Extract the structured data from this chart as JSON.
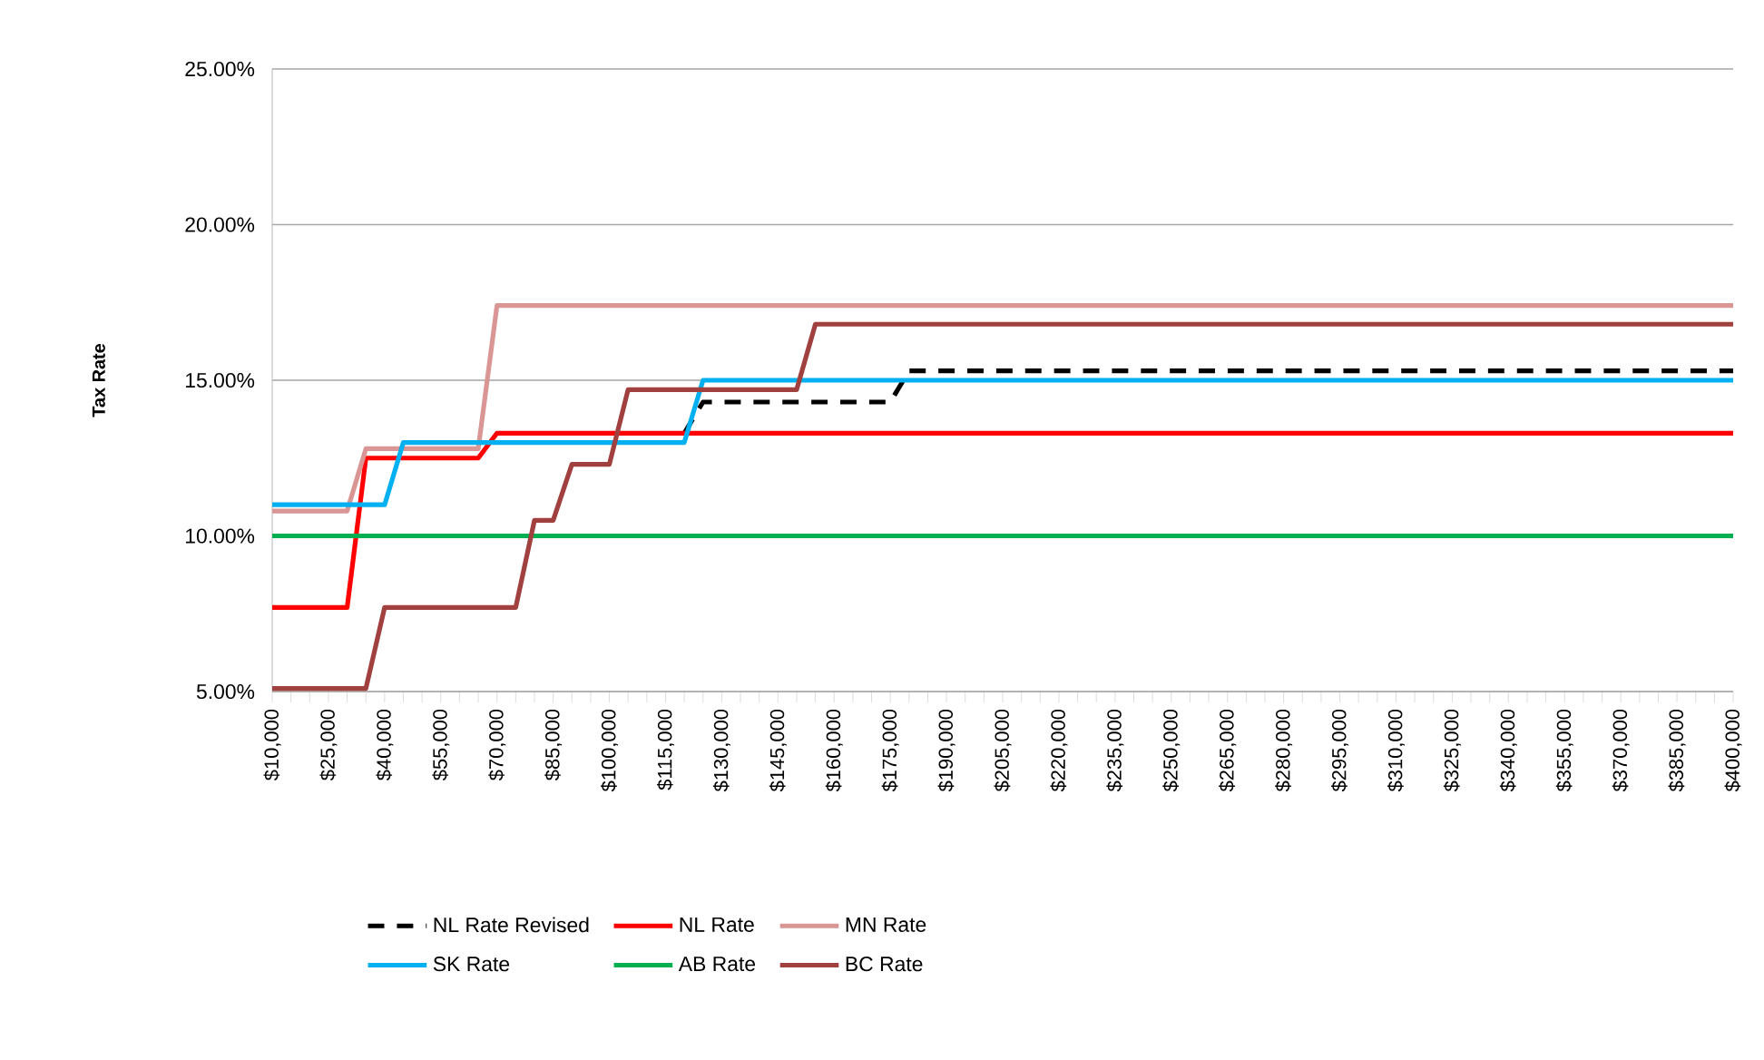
{
  "chart_data": {
    "type": "line",
    "ylabel": "Tax Rate",
    "ylim": [
      5,
      25
    ],
    "yticks": [
      {
        "value": 5,
        "label": "5.00%"
      },
      {
        "value": 10,
        "label": "10.00%"
      },
      {
        "value": 15,
        "label": "15.00%"
      },
      {
        "value": 20,
        "label": "20.00%"
      },
      {
        "value": 25,
        "label": "25.00%"
      }
    ],
    "grid": "y",
    "legend": "bottom",
    "line_style": "solid",
    "categories": [
      "$10,000",
      null,
      null,
      "$25,000",
      null,
      null,
      "$40,000",
      null,
      null,
      "$55,000",
      null,
      null,
      "$70,000",
      null,
      null,
      "$85,000",
      null,
      null,
      "$100,000",
      null,
      null,
      "$115,000",
      null,
      null,
      "$130,000",
      null,
      null,
      "$145,000",
      null,
      null,
      "$160,000",
      null,
      null,
      "$175,000",
      null,
      null,
      "$190,000",
      null,
      null,
      "$205,000",
      null,
      null,
      "$220,000",
      null,
      null,
      "$235,000",
      null,
      null,
      "$250,000",
      null,
      null,
      "$265,000",
      null,
      null,
      "$280,000",
      null,
      null,
      "$295,000",
      null,
      null,
      "$310,000",
      null,
      null,
      "$325,000",
      null,
      null,
      "$340,000",
      null,
      null,
      "$355,000",
      null,
      null,
      "$370,000",
      null,
      null,
      "$385,000",
      null,
      null,
      "$400,000"
    ],
    "series": [
      {
        "name": "NL Rate Revised",
        "color": "#000000",
        "line_style": "dashed",
        "values": [
          null,
          null,
          null,
          null,
          null,
          null,
          null,
          null,
          null,
          null,
          null,
          null,
          null,
          null,
          null,
          null,
          null,
          null,
          null,
          null,
          null,
          null,
          13.3,
          14.3,
          14.3,
          14.3,
          14.3,
          14.3,
          14.3,
          14.3,
          14.3,
          14.3,
          14.3,
          14.3,
          15.3,
          15.3,
          15.3,
          15.3,
          15.3,
          15.3,
          15.3,
          15.3,
          15.3,
          15.3,
          15.3,
          15.3,
          15.3,
          15.3,
          15.3,
          15.3,
          15.3,
          15.3,
          15.3,
          15.3,
          15.3,
          15.3,
          15.3,
          15.3,
          15.3,
          15.3,
          15.3,
          15.3,
          15.3,
          15.3,
          15.3,
          15.3,
          15.3,
          15.3,
          15.3,
          15.3,
          15.3,
          15.3,
          15.3,
          15.3,
          15.3,
          15.3,
          15.3,
          15.3,
          15.3
        ]
      },
      {
        "name": "NL Rate",
        "color": "#ff0000",
        "values": [
          7.7,
          7.7,
          7.7,
          7.7,
          7.7,
          12.5,
          12.5,
          12.5,
          12.5,
          12.5,
          12.5,
          12.5,
          13.3,
          13.3,
          13.3,
          13.3,
          13.3,
          13.3,
          13.3,
          13.3,
          13.3,
          13.3,
          13.3,
          13.3,
          13.3,
          13.3,
          13.3,
          13.3,
          13.3,
          13.3,
          13.3,
          13.3,
          13.3,
          13.3,
          13.3,
          13.3,
          13.3,
          13.3,
          13.3,
          13.3,
          13.3,
          13.3,
          13.3,
          13.3,
          13.3,
          13.3,
          13.3,
          13.3,
          13.3,
          13.3,
          13.3,
          13.3,
          13.3,
          13.3,
          13.3,
          13.3,
          13.3,
          13.3,
          13.3,
          13.3,
          13.3,
          13.3,
          13.3,
          13.3,
          13.3,
          13.3,
          13.3,
          13.3,
          13.3,
          13.3,
          13.3,
          13.3,
          13.3,
          13.3,
          13.3,
          13.3,
          13.3,
          13.3,
          13.3
        ]
      },
      {
        "name": "MN Rate",
        "color": "#d99694",
        "values": [
          10.8,
          10.8,
          10.8,
          10.8,
          10.8,
          12.8,
          12.8,
          12.8,
          12.8,
          12.8,
          12.8,
          12.8,
          17.4,
          17.4,
          17.4,
          17.4,
          17.4,
          17.4,
          17.4,
          17.4,
          17.4,
          17.4,
          17.4,
          17.4,
          17.4,
          17.4,
          17.4,
          17.4,
          17.4,
          17.4,
          17.4,
          17.4,
          17.4,
          17.4,
          17.4,
          17.4,
          17.4,
          17.4,
          17.4,
          17.4,
          17.4,
          17.4,
          17.4,
          17.4,
          17.4,
          17.4,
          17.4,
          17.4,
          17.4,
          17.4,
          17.4,
          17.4,
          17.4,
          17.4,
          17.4,
          17.4,
          17.4,
          17.4,
          17.4,
          17.4,
          17.4,
          17.4,
          17.4,
          17.4,
          17.4,
          17.4,
          17.4,
          17.4,
          17.4,
          17.4,
          17.4,
          17.4,
          17.4,
          17.4,
          17.4,
          17.4,
          17.4,
          17.4,
          17.4
        ]
      },
      {
        "name": "SK Rate",
        "color": "#00b0f0",
        "values": [
          11.0,
          11.0,
          11.0,
          11.0,
          11.0,
          11.0,
          11.0,
          13.0,
          13.0,
          13.0,
          13.0,
          13.0,
          13.0,
          13.0,
          13.0,
          13.0,
          13.0,
          13.0,
          13.0,
          13.0,
          13.0,
          13.0,
          13.0,
          15.0,
          15.0,
          15.0,
          15.0,
          15.0,
          15.0,
          15.0,
          15.0,
          15.0,
          15.0,
          15.0,
          15.0,
          15.0,
          15.0,
          15.0,
          15.0,
          15.0,
          15.0,
          15.0,
          15.0,
          15.0,
          15.0,
          15.0,
          15.0,
          15.0,
          15.0,
          15.0,
          15.0,
          15.0,
          15.0,
          15.0,
          15.0,
          15.0,
          15.0,
          15.0,
          15.0,
          15.0,
          15.0,
          15.0,
          15.0,
          15.0,
          15.0,
          15.0,
          15.0,
          15.0,
          15.0,
          15.0,
          15.0,
          15.0,
          15.0,
          15.0,
          15.0,
          15.0,
          15.0,
          15.0,
          15.0
        ]
      },
      {
        "name": "AB Rate",
        "color": "#00b050",
        "values": [
          10,
          10,
          10,
          10,
          10,
          10,
          10,
          10,
          10,
          10,
          10,
          10,
          10,
          10,
          10,
          10,
          10,
          10,
          10,
          10,
          10,
          10,
          10,
          10,
          10,
          10,
          10,
          10,
          10,
          10,
          10,
          10,
          10,
          10,
          10,
          10,
          10,
          10,
          10,
          10,
          10,
          10,
          10,
          10,
          10,
          10,
          10,
          10,
          10,
          10,
          10,
          10,
          10,
          10,
          10,
          10,
          10,
          10,
          10,
          10,
          10,
          10,
          10,
          10,
          10,
          10,
          10,
          10,
          10,
          10,
          10,
          10,
          10,
          10,
          10,
          10,
          10,
          10,
          10
        ]
      },
      {
        "name": "BC Rate",
        "color": "#a0403f",
        "values": [
          5.1,
          5.1,
          5.1,
          5.1,
          5.1,
          5.1,
          7.7,
          7.7,
          7.7,
          7.7,
          7.7,
          7.7,
          7.7,
          7.7,
          10.5,
          10.5,
          12.3,
          12.3,
          12.3,
          14.7,
          14.7,
          14.7,
          14.7,
          14.7,
          14.7,
          14.7,
          14.7,
          14.7,
          14.7,
          16.8,
          16.8,
          16.8,
          16.8,
          16.8,
          16.8,
          16.8,
          16.8,
          16.8,
          16.8,
          16.8,
          16.8,
          16.8,
          16.8,
          16.8,
          16.8,
          16.8,
          16.8,
          16.8,
          16.8,
          16.8,
          16.8,
          16.8,
          16.8,
          16.8,
          16.8,
          16.8,
          16.8,
          16.8,
          16.8,
          16.8,
          16.8,
          16.8,
          16.8,
          16.8,
          16.8,
          16.8,
          16.8,
          16.8,
          16.8,
          16.8,
          16.8,
          16.8,
          16.8,
          16.8,
          16.8,
          16.8,
          16.8,
          16.8,
          16.8
        ]
      }
    ]
  }
}
